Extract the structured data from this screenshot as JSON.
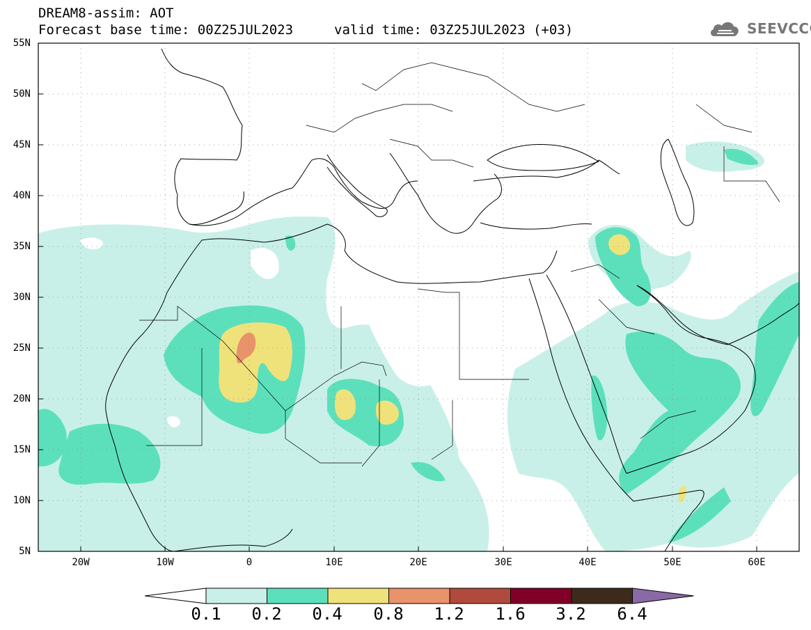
{
  "header": {
    "title": "DREAM8-assim: AOT",
    "forecast_base": "Forecast base time: 00Z25JUL2023",
    "valid_time": "valid time: 03Z25JUL2023 (+03)"
  },
  "logo": {
    "text": "SEEVCCC",
    "icon": "cloud-icon"
  },
  "map": {
    "lat_labels": [
      "55N",
      "50N",
      "45N",
      "40N",
      "35N",
      "30N",
      "25N",
      "20N",
      "15N",
      "10N",
      "5N"
    ],
    "lon_labels": [
      "20W",
      "10W",
      "0",
      "10E",
      "20E",
      "30E",
      "40E",
      "50E",
      "60E"
    ],
    "lat_range": [
      5,
      55
    ],
    "lon_range": [
      -25,
      65
    ],
    "grid": "dotted"
  },
  "colorbar": {
    "levels": [
      "0.1",
      "0.2",
      "0.4",
      "0.8",
      "1.2",
      "1.6",
      "3.2",
      "6.4"
    ],
    "colors": [
      "#ffffff",
      "#c8f0e8",
      "#5ce0bc",
      "#f0e27a",
      "#e8936a",
      "#b04a3c",
      "#800028",
      "#3e2a1a",
      "#8a6aa6"
    ]
  }
}
